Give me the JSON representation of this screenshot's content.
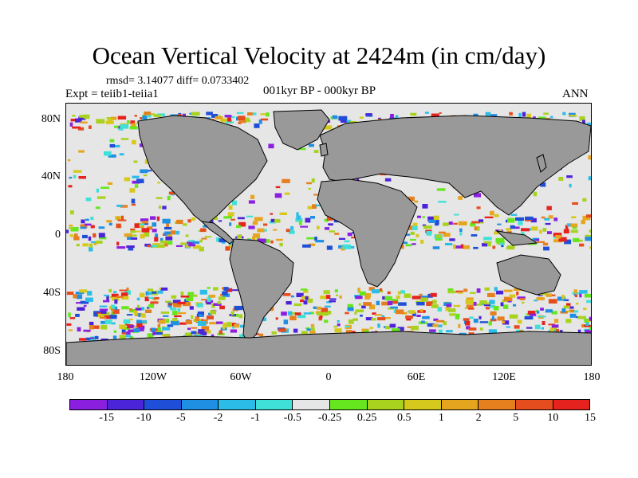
{
  "title": "Ocean Vertical Velocity at 2424m (in cm/day)",
  "stats": "rmsd= 3.14077 diff= 0.0733402",
  "expt": "Expt = teiib1-teiia1",
  "period": "001kyr BP - 000kyr BP",
  "season": "ANN",
  "lat_labels": [
    "80N",
    "40N",
    "0",
    "40S",
    "80S"
  ],
  "lon_labels": [
    "180",
    "120W",
    "60W",
    "0",
    "60E",
    "120E",
    "180"
  ],
  "colorbar": {
    "labels": [
      "-15",
      "-10",
      "-5",
      "-2",
      "-1",
      "-0.5",
      "-0.25",
      "0.25",
      "0.5",
      "1",
      "2",
      "5",
      "10",
      "15"
    ],
    "colors": [
      "#8b1fe0",
      "#4b23d8",
      "#1f4fd9",
      "#1f8fe4",
      "#2bbde8",
      "#3fe0d8",
      "#e6e6e6",
      "#66e61e",
      "#a8d21e",
      "#d6c91e",
      "#e6a51e",
      "#e67f1e",
      "#e64d1e",
      "#e6221e"
    ]
  },
  "colors": {
    "land": "#999999",
    "near_zero": "#e6e6e6"
  }
}
